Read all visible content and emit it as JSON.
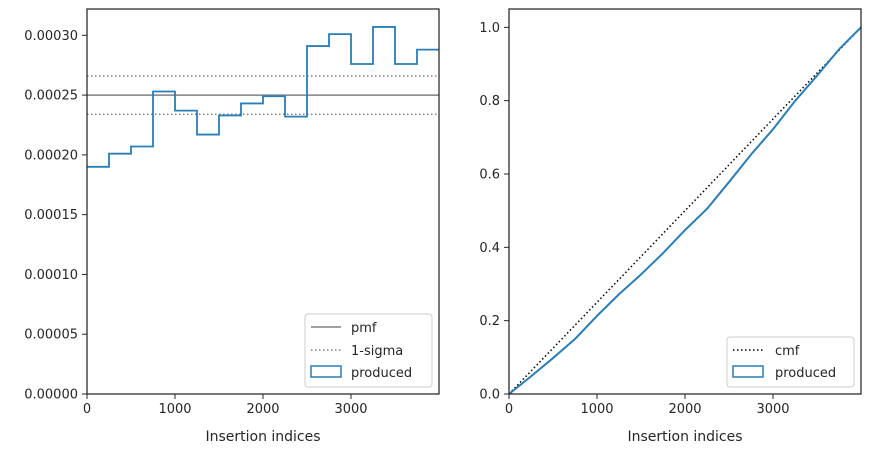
{
  "colors": {
    "produced": "#2a7db6",
    "pmf": "#808080",
    "sigma": "#808080",
    "cmf": "#000000",
    "axis": "#262626"
  },
  "chart_data": [
    {
      "type": "line",
      "panel": "left",
      "xlabel": "Insertion indices",
      "ylabel": "",
      "xlim": [
        0,
        4000
      ],
      "ylim": [
        0,
        0.000322
      ],
      "xticks": [
        0,
        1000,
        2000,
        3000
      ],
      "xtick_labels": [
        "0",
        "1000",
        "2000",
        "3000"
      ],
      "yticks": [
        0,
        5e-05,
        0.0001,
        0.00015,
        0.0002,
        0.00025,
        0.0003
      ],
      "ytick_labels": [
        "0.00000",
        "0.00005",
        "0.00010",
        "0.00015",
        "0.00020",
        "0.00025",
        "0.00030"
      ],
      "grid": false,
      "legend_position": "lower-right",
      "legend": [
        "pmf",
        "1-sigma",
        "produced"
      ],
      "pmf": 0.00025,
      "sigma_lines": [
        0.000266,
        0.000234
      ],
      "histogram": {
        "name": "produced",
        "bin_edges": [
          0,
          250,
          500,
          750,
          1000,
          1250,
          1500,
          1750,
          2000,
          2250,
          2500,
          2750,
          3000,
          3250,
          3500,
          3750,
          4000
        ],
        "values": [
          0.00019,
          0.000201,
          0.000207,
          0.000253,
          0.000237,
          0.000217,
          0.000233,
          0.000243,
          0.000249,
          0.000232,
          0.000291,
          0.000301,
          0.000276,
          0.000307,
          0.000276,
          0.000288
        ]
      }
    },
    {
      "type": "line",
      "panel": "right",
      "xlabel": "Insertion indices",
      "ylabel": "",
      "xlim": [
        0,
        4000
      ],
      "ylim": [
        0,
        1.05
      ],
      "xticks": [
        0,
        1000,
        2000,
        3000
      ],
      "xtick_labels": [
        "0",
        "1000",
        "2000",
        "3000"
      ],
      "yticks": [
        0,
        0.2,
        0.4,
        0.6,
        0.8,
        1.0
      ],
      "ytick_labels": [
        "0.0",
        "0.2",
        "0.4",
        "0.6",
        "0.8",
        "1.0"
      ],
      "grid": false,
      "legend_position": "lower-right",
      "legend": [
        "cmf",
        "produced"
      ],
      "cmf": {
        "x": [
          0,
          4000
        ],
        "y": [
          0,
          1.0
        ]
      },
      "produced_cdf": {
        "name": "produced",
        "x": [
          0,
          250,
          500,
          750,
          1000,
          1250,
          1500,
          1750,
          2000,
          2250,
          2500,
          2750,
          3000,
          3250,
          3500,
          3750,
          4000
        ],
        "y": [
          0,
          0.048,
          0.098,
          0.15,
          0.213,
          0.272,
          0.326,
          0.384,
          0.447,
          0.505,
          0.578,
          0.653,
          0.722,
          0.799,
          0.868,
          0.94,
          1.0
        ]
      }
    }
  ]
}
